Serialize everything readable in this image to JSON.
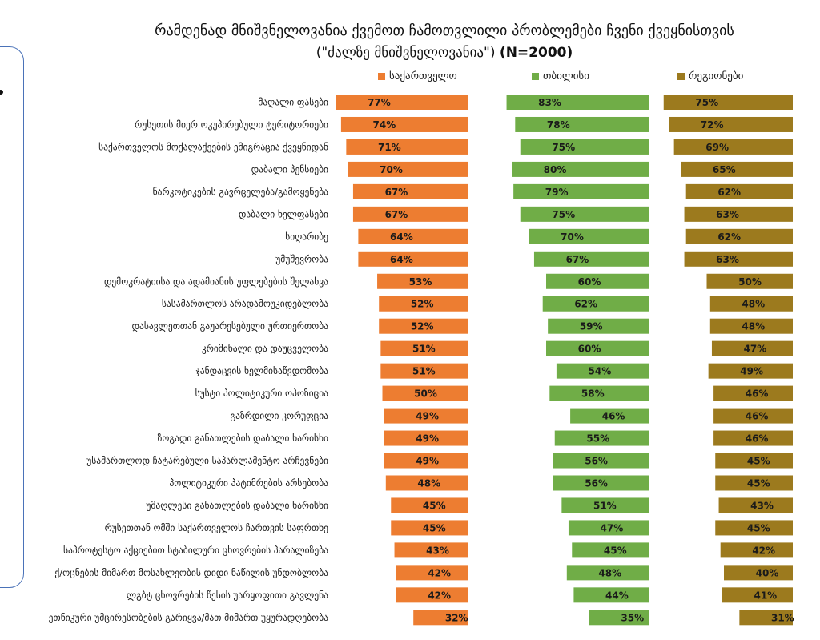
{
  "title_line1": "რამდენად მნიშვნელოვანია ქვემოთ ჩამოთვლილი პრობლემები ჩვენი ქვეყნისთვის",
  "title_line2": "(\"ძალზე მნიშვნელოვანია\")",
  "title_n": "(N=2000)",
  "chart_data": {
    "type": "bar",
    "orientation": "horizontal",
    "categories": [
      "მაღალი ფასები",
      "რუსეთის მიერ ოკუპირებული ტერიტორიები",
      "საქართველოს მოქალაქეების ემიგრაცია ქვეყნიდან",
      "დაბალი პენსიები",
      "ნარკოტიკების გავრცელება/გამოყენება",
      "დაბალი ხელფასები",
      "სიღარიბე",
      "უმუშევრობა",
      "დემოკრატიისა და ადამიანის უფლებების შელახვა",
      "სასამართლოს არადამოუკიდებლობა",
      "დასავლეთთან გაუარესებული ურთიერთობა",
      "კრიმინალი და დაუცველობა",
      "ჯანდაცვის ხელმისაწვდომობა",
      "სუსტი პოლიტიკური ოპოზიცია",
      "გაზრდილი კორუფცია",
      "ზოგადი განათლების დაბალი ხარისხი",
      "უსამართლოდ ჩატარებული საპარლამენტო არჩევნები",
      "პოლიტიკური პატიმრების არსებობა",
      "უმაღლესი განათლების დაბალი ხარისხი",
      "რუსეთთან ომში საქართველოს ჩართვის საფრთხე",
      "საპროტესტო აქციებით სტაბილური ცხოვრების პარალიზება",
      "ქ/ოცნების მიმართ მოსახლეობის დიდი ნაწილის უნდობლობა",
      "ლგბტ ცხოვრების წესის უარყოფითი გავლენა",
      "ეთნიკური უმცირესობების გარიყვა/მათ მიმართ უყურადღებობა"
    ],
    "series": [
      {
        "name": "საქართველო",
        "color": "#ed7d31",
        "values": [
          77,
          74,
          71,
          70,
          67,
          67,
          64,
          64,
          53,
          52,
          52,
          51,
          51,
          50,
          49,
          49,
          49,
          48,
          45,
          45,
          43,
          42,
          42,
          32
        ]
      },
      {
        "name": "თბილისი",
        "color": "#70ad47",
        "values": [
          83,
          78,
          75,
          80,
          79,
          75,
          70,
          67,
          60,
          62,
          59,
          60,
          54,
          58,
          46,
          55,
          56,
          56,
          51,
          47,
          45,
          48,
          44,
          35
        ]
      },
      {
        "name": "რეგიონები",
        "color": "#9c7a1e",
        "values": [
          75,
          72,
          69,
          65,
          62,
          63,
          62,
          63,
          50,
          48,
          48,
          47,
          49,
          46,
          46,
          46,
          45,
          45,
          43,
          45,
          42,
          40,
          41,
          31
        ]
      }
    ],
    "value_suffix": "%",
    "bar_label_color": "#1a1a1a"
  }
}
